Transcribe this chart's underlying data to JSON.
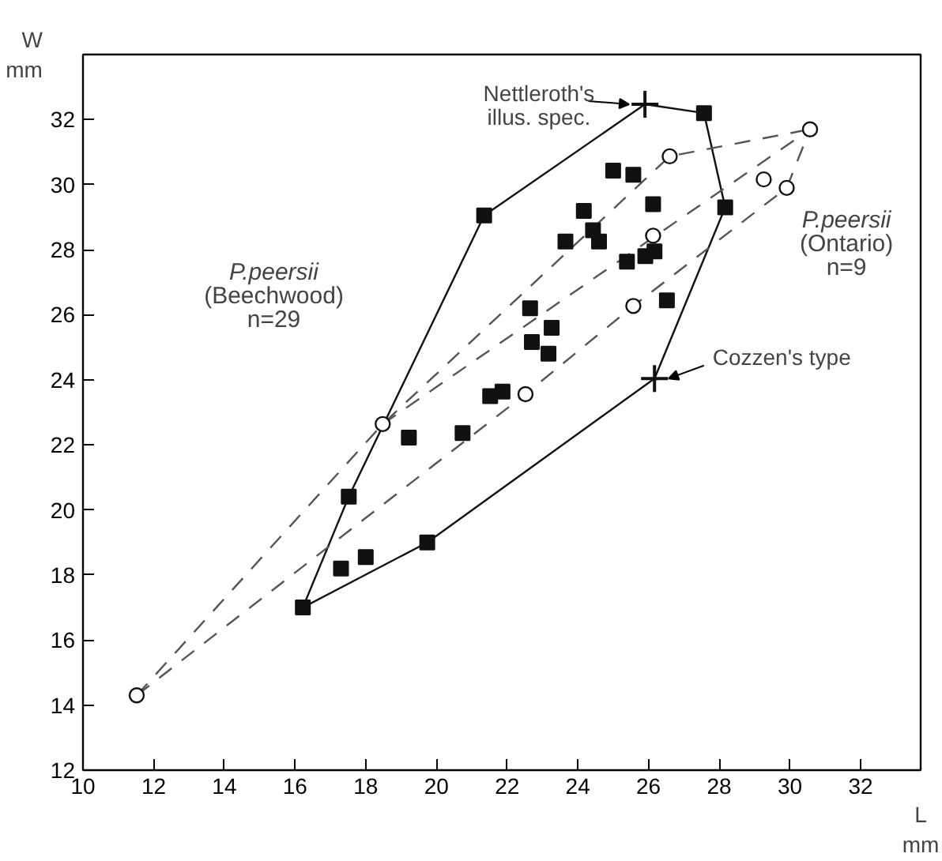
{
  "chart_data": {
    "type": "scatter",
    "xlabel": "L\nmm",
    "ylabel": "W\nmm",
    "xlim": [
      10,
      33.7
    ],
    "ylim": [
      12,
      34
    ],
    "xticks": [
      10,
      12,
      14,
      16,
      18,
      20,
      22,
      24,
      26,
      28,
      30,
      32
    ],
    "yticks": [
      12,
      14,
      16,
      18,
      20,
      22,
      24,
      26,
      28,
      30,
      32
    ],
    "grid": false,
    "series": [
      {
        "type": "line",
        "line_style": "solid",
        "marker": "none",
        "color": "#111111",
        "x": [
          16.22,
          17.52,
          21.35,
          25.9,
          27.57,
          28.17
        ],
        "values": [
          17.0,
          20.41,
          29.05,
          32.47,
          32.2,
          29.3
        ]
      },
      {
        "type": "line",
        "line_style": "solid",
        "marker": "none",
        "color": "#111111",
        "x": [
          16.22,
          19.74,
          26.17,
          28.17
        ],
        "values": [
          17.0,
          19.0,
          24.04,
          29.3
        ]
      },
      {
        "type": "line",
        "line_style": "dashed",
        "marker": "none",
        "color": "#555555",
        "x": [
          11.52,
          18.48,
          26.6,
          30.57
        ],
        "values": [
          14.3,
          22.64,
          30.87,
          31.7
        ]
      },
      {
        "type": "line",
        "line_style": "dashed",
        "marker": "none",
        "color": "#555555",
        "x": [
          11.52,
          22.52,
          25.57,
          29.91,
          30.57
        ],
        "values": [
          14.3,
          23.56,
          26.27,
          29.9,
          31.7
        ]
      },
      {
        "type": "line",
        "line_style": "dashed",
        "marker": "none",
        "color": "#555555",
        "x": [
          18.48,
          30.57
        ],
        "values": [
          22.64,
          31.7
        ]
      },
      {
        "marker": "square",
        "color": "#111111",
        "x": [
          21.35,
          27.57,
          28.17,
          25.0,
          25.57,
          26.13,
          25.39,
          25.91,
          26.17,
          26.52,
          24.17,
          24.43,
          24.6,
          23.65,
          22.65,
          23.26,
          22.7,
          23.17,
          21.52,
          21.87,
          19.22,
          20.74,
          17.52,
          19.74,
          18.0,
          17.3,
          16.22
        ],
        "values": [
          29.05,
          32.2,
          29.3,
          30.43,
          30.3,
          29.4,
          27.63,
          27.8,
          27.95,
          26.44,
          29.19,
          28.6,
          28.25,
          28.25,
          26.2,
          25.6,
          25.16,
          24.8,
          23.5,
          23.64,
          22.22,
          22.36,
          20.41,
          19.0,
          18.55,
          18.2,
          17.0
        ]
      },
      {
        "marker": "circle",
        "color": "#111111",
        "x": [
          30.57,
          26.6,
          29.26,
          29.91,
          26.13,
          25.57,
          22.52,
          18.48,
          11.52
        ],
        "values": [
          31.7,
          30.87,
          30.16,
          29.9,
          28.43,
          26.27,
          23.56,
          22.64,
          14.3
        ]
      },
      {
        "marker": "cross",
        "color": "#111111",
        "x": [
          25.9,
          26.17
        ],
        "values": [
          32.47,
          24.04
        ]
      }
    ],
    "annotations": [
      {
        "text": "Nettleroth's\nillus. spec.",
        "x": 25.9,
        "y": 32.47
      },
      {
        "text": "Cozzen's type",
        "x": 26.17,
        "y": 24.04
      },
      "P.peersii\n(Beechwood)\nn=29",
      "P.peersii\n(Ontario)\nn=9"
    ]
  }
}
